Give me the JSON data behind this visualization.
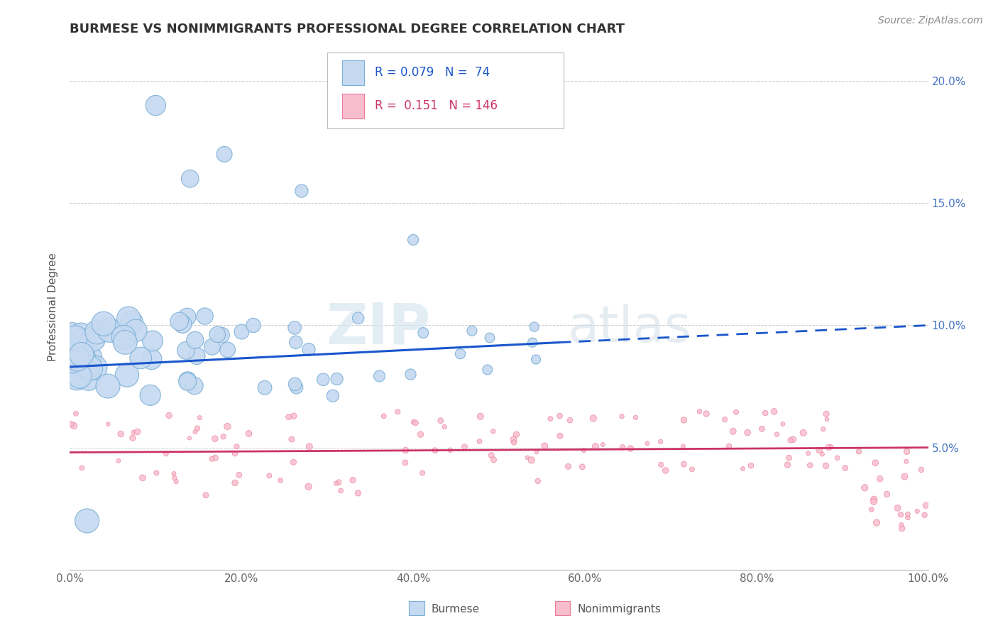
{
  "title": "BURMESE VS NONIMMIGRANTS PROFESSIONAL DEGREE CORRELATION CHART",
  "source": "Source: ZipAtlas.com",
  "ylabel": "Professional Degree",
  "x_tick_labels": [
    "0.0%",
    "20.0%",
    "40.0%",
    "60.0%",
    "80.0%",
    "100.0%"
  ],
  "x_tick_values": [
    0,
    20,
    40,
    60,
    80,
    100
  ],
  "y_tick_labels": [
    "5.0%",
    "10.0%",
    "15.0%",
    "20.0%"
  ],
  "y_tick_values": [
    5,
    10,
    15,
    20
  ],
  "xlim": [
    0,
    100
  ],
  "ylim": [
    0,
    21.5
  ],
  "burmese_fill_color": "#c5d9f0",
  "burmese_edge_color": "#7ab0d8",
  "nonimmigrants_fill_color": "#f9bece",
  "nonimmigrants_edge_color": "#e87a98",
  "burmese_line_color": "#1a56cc",
  "nonimmigrants_line_color": "#cc3366",
  "legend_burmese_r": "0.079",
  "legend_burmese_n": "74",
  "legend_nonimmigrants_r": "0.151",
  "legend_nonimmigrants_n": "146",
  "watermark_zip": "ZIP",
  "watermark_atlas": "atlas",
  "background_color": "#ffffff",
  "grid_color": "#cccccc",
  "title_color": "#333333",
  "axis_label_color": "#555555",
  "tick_color": "#4472c4",
  "source_color": "#888888",
  "dashed_start_x": 57,
  "burmese_line_start_y": 8.3,
  "burmese_line_end_y_solid": 9.3,
  "burmese_line_end_y_dashed": 10.0,
  "nonimmigrants_line_start_y": 4.8,
  "nonimmigrants_line_end_y": 5.0
}
